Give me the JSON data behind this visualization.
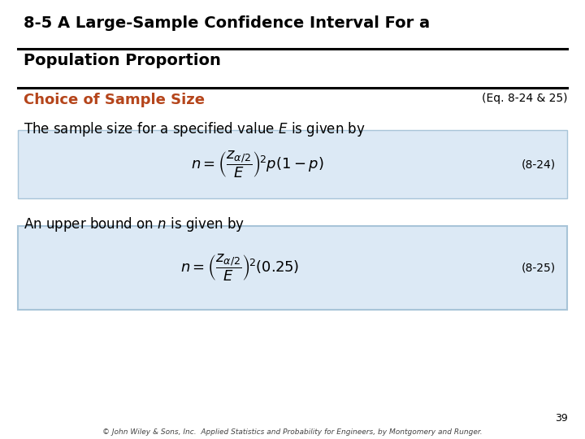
{
  "title_line1": "8-5 A Large-Sample Confidence Interval For a",
  "title_line2": "Population Proportion",
  "section_title": "Choice of Sample Size",
  "eq_ref": "(Eq. 8-24 & 25)",
  "text1_full": "The sample size for a specified value $E$ is given by",
  "formula1": "$n = \\left(\\dfrac{z_{\\alpha/2}}{E}\\right)^{\\!2} p(1 - p)$",
  "eq_label1": "(8-24)",
  "text2_full": "An upper bound on $n$ is given by",
  "formula2": "$n = \\left(\\dfrac{z_{\\alpha/2}}{E}\\right)^{\\!2} (0.25)$",
  "eq_label2": "(8-25)",
  "page_number": "39",
  "footer": "© John Wiley & Sons, Inc.  Applied Statistics and Probability for Engineers, by Montgomery and Runger.",
  "bg_color": "#ffffff",
  "box_color": "#dce9f5",
  "box_border_color": "#a8c4d8",
  "title_color": "#000000",
  "section_color": "#b5451b",
  "text_color": "#000000",
  "title_fontsize": 14,
  "section_fontsize": 13,
  "body_fontsize": 12,
  "formula_fontsize": 13
}
